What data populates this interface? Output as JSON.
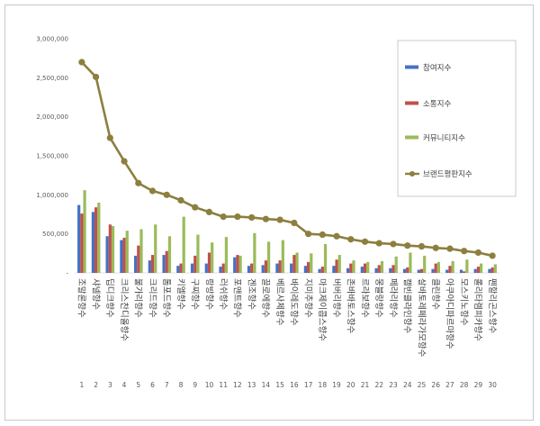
{
  "chart_data": {
    "type": "bar",
    "title": "",
    "xlabel": "",
    "ylabel": "",
    "ylim": [
      0,
      3000000
    ],
    "y_ticks": [
      "-",
      "500,000",
      "1,000,000",
      "1,500,000",
      "2,000,000",
      "2,500,000",
      "3,000,000"
    ],
    "grid": false,
    "legend_position": "top-right",
    "categories": [
      "조말론향수",
      "샤넬향수",
      "딥디크향수",
      "크리스찬디올향수",
      "불가리향수",
      "크리드향수",
      "톰포드향수",
      "키엘향수",
      "구찌향수",
      "랑방향수",
      "러쉬향수",
      "포맨트향수",
      "겐조향수",
      "끌로에향수",
      "베르사체향수",
      "바이레도향수",
      "지미추향수",
      "마크제이콥스향수",
      "버버리향수",
      "존바바토스향수",
      "르라보향수",
      "몽블랑향수",
      "페라리향수",
      "캘빈클라인향수",
      "살바토레페라가모향수",
      "클린향수",
      "아쿠아디파르마향수",
      "모스키노향수",
      "롤리타렘피카향수",
      "펜할리곤스향수"
    ],
    "ranks": [
      "1",
      "2",
      "3",
      "4",
      "5",
      "6",
      "7",
      "8",
      "9",
      "10",
      "11",
      "12",
      "13",
      "14",
      "15",
      "16",
      "17",
      "18",
      "19",
      "20",
      "21",
      "22",
      "23",
      "24",
      "25",
      "26",
      "27",
      "28",
      "29",
      "30"
    ],
    "series": [
      {
        "name": "참여지수",
        "kind": "bar",
        "color": "#4472c4",
        "values": [
          870000,
          780000,
          470000,
          420000,
          220000,
          160000,
          230000,
          90000,
          120000,
          120000,
          80000,
          200000,
          90000,
          100000,
          120000,
          120000,
          90000,
          50000,
          90000,
          60000,
          80000,
          60000,
          60000,
          50000,
          40000,
          50000,
          40000,
          40000,
          50000,
          50000
        ]
      },
      {
        "name": "소통지수",
        "kind": "bar",
        "color": "#c0504d",
        "values": [
          760000,
          840000,
          620000,
          450000,
          350000,
          230000,
          280000,
          120000,
          220000,
          260000,
          120000,
          230000,
          120000,
          160000,
          160000,
          230000,
          140000,
          80000,
          170000,
          120000,
          120000,
          100000,
          100000,
          70000,
          50000,
          120000,
          90000,
          20000,
          80000,
          70000
        ]
      },
      {
        "name": "커뮤니티지수",
        "kind": "bar",
        "color": "#9bbb59",
        "values": [
          1060000,
          900000,
          600000,
          540000,
          560000,
          620000,
          470000,
          720000,
          490000,
          390000,
          460000,
          220000,
          510000,
          400000,
          420000,
          260000,
          250000,
          370000,
          230000,
          160000,
          140000,
          150000,
          210000,
          260000,
          220000,
          140000,
          150000,
          170000,
          120000,
          110000
        ]
      },
      {
        "name": "브랜드평판지수",
        "kind": "line",
        "color": "#8c7f3f",
        "values": [
          2700000,
          2510000,
          1730000,
          1430000,
          1150000,
          1050000,
          1000000,
          930000,
          840000,
          780000,
          720000,
          720000,
          710000,
          690000,
          680000,
          640000,
          500000,
          490000,
          470000,
          430000,
          400000,
          380000,
          370000,
          350000,
          340000,
          320000,
          310000,
          280000,
          260000,
          220000
        ]
      }
    ]
  }
}
